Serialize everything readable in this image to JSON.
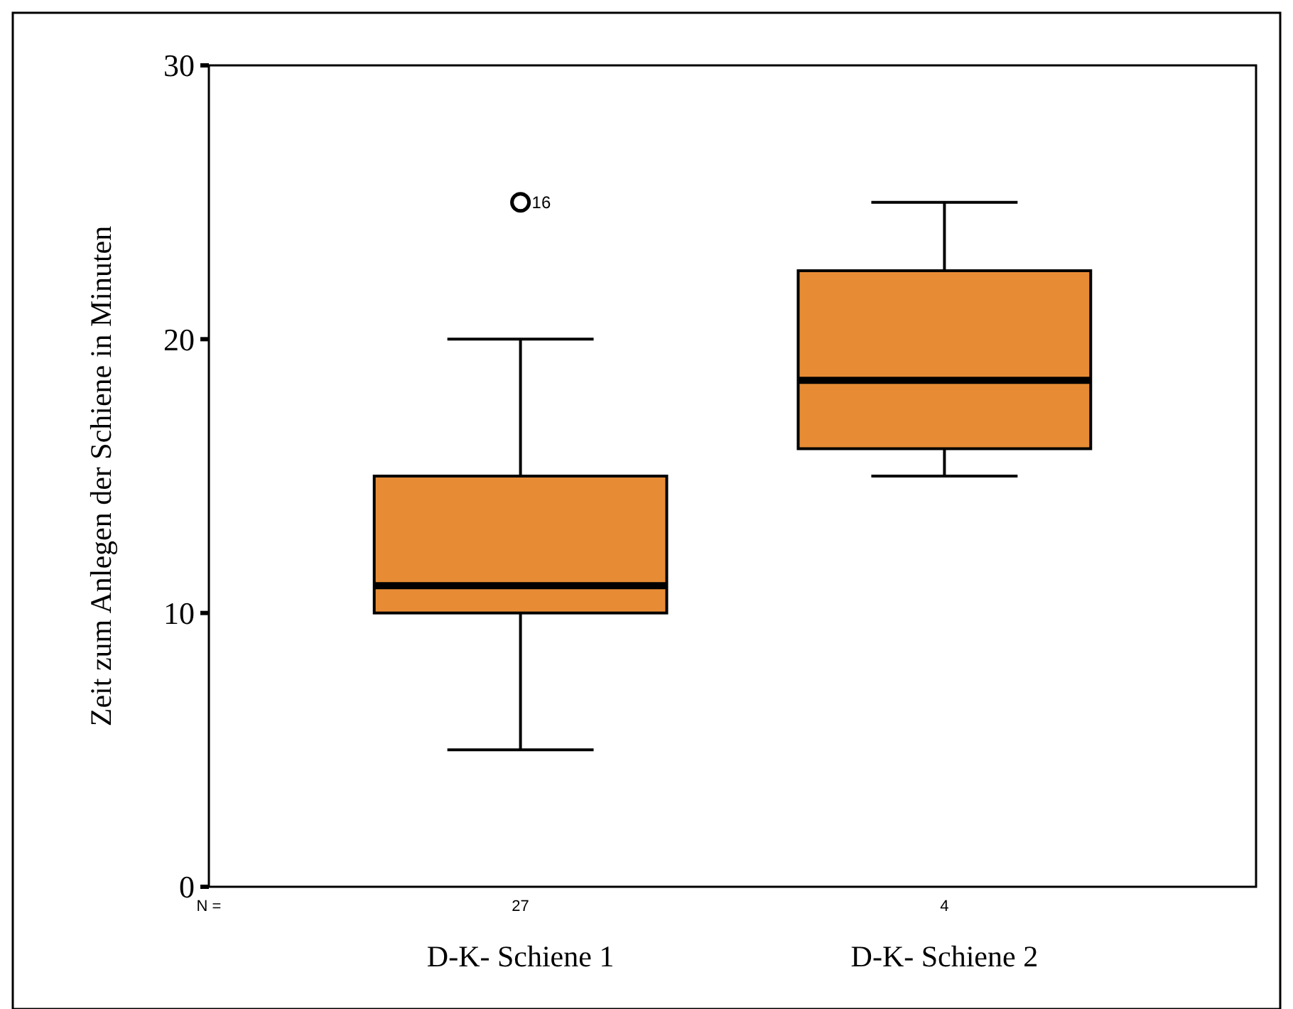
{
  "chart_data": {
    "type": "box",
    "ylabel": "Zeit zum Anlegen der Schiene in Minuten",
    "categories": [
      "D-K- Schiene 1",
      "D-K- Schiene 2"
    ],
    "color": "#e78c35",
    "ylim": [
      0,
      30
    ],
    "yticks": [
      0,
      10,
      20,
      30
    ],
    "grid": false,
    "boxes": [
      {
        "low": 5,
        "q1": 10,
        "median": 11,
        "q3": 15,
        "high": 20,
        "outliers": [
          25
        ]
      },
      {
        "low": 15,
        "q1": 16,
        "median": 18.5,
        "q3": 22.5,
        "high": 25
      }
    ],
    "annotations": [
      "N =",
      "27",
      "4",
      "16"
    ]
  }
}
